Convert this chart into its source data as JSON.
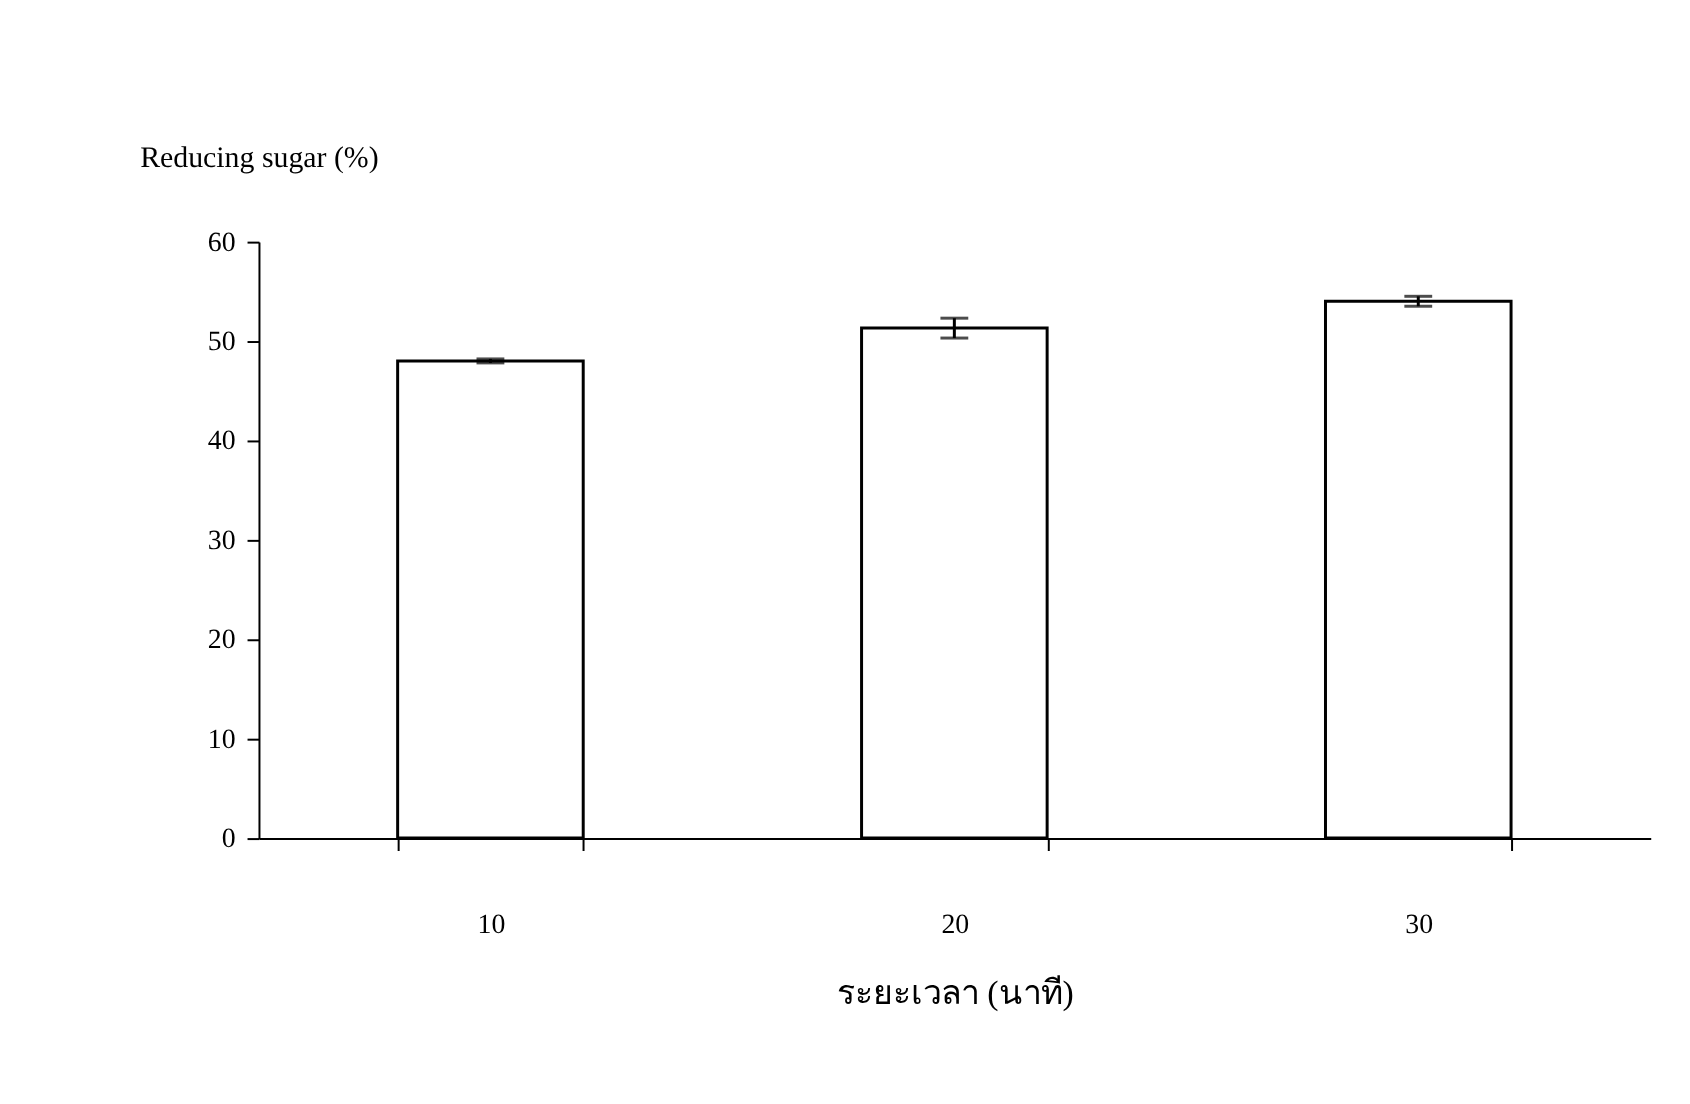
{
  "chart_data": {
    "type": "bar",
    "xlabel": "ระยะเวลา (นาที)",
    "ylabel": "Reducing sugar (%)",
    "categories": [
      "10",
      "20",
      "30"
    ],
    "values": [
      48,
      51.3,
      54
    ],
    "errors": [
      0.2,
      1.0,
      0.5
    ],
    "color": "#ffffff",
    "ylim": [
      0,
      60
    ],
    "yticks": [
      0,
      10,
      20,
      30,
      40,
      50,
      60
    ],
    "grid": false
  }
}
